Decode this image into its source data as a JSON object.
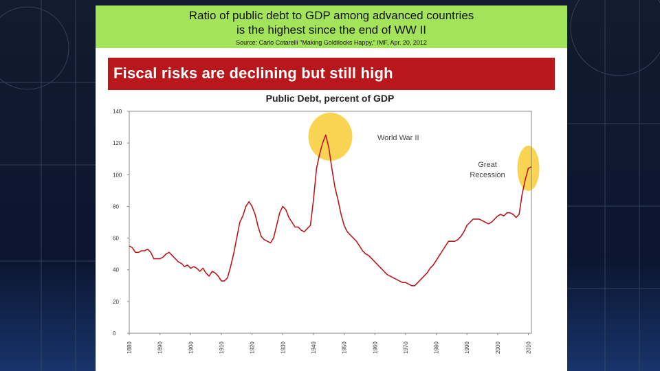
{
  "banner": {
    "line1": "Ratio of public debt to GDP among advanced countries",
    "line2": "is the highest since the end of WW II",
    "source": "Source: Carlo Cotarelli \"Making Goldilocks Happy,\" IMF, Apr. 20, 2012"
  },
  "slide": {
    "headline": "Fiscal risks are declining but still high"
  },
  "colors": {
    "banner_bg": "#a4e45a",
    "headline_bg": "#b8171b",
    "line": "#b8171b",
    "highlight": "#f5c518"
  },
  "chart_data": {
    "type": "line",
    "title": "Public Debt, percent of GDP",
    "xlim": [
      1880,
      2011
    ],
    "ylim": [
      0,
      140
    ],
    "yticks": [
      0,
      20,
      40,
      60,
      80,
      100,
      120,
      140
    ],
    "xticks": [
      1880,
      1890,
      1900,
      1910,
      1920,
      1930,
      1940,
      1950,
      1960,
      1970,
      1980,
      1990,
      2000,
      2010
    ],
    "grid": false,
    "annotations": [
      {
        "text_lines": [
          "World War II"
        ],
        "x": 1945,
        "y": 124
      },
      {
        "text_lines": [
          "Great",
          "Recession"
        ],
        "x": 2010,
        "y": 104
      }
    ],
    "series": [
      {
        "x": [
          1880,
          1881,
          1882,
          1883,
          1884,
          1885,
          1886,
          1887,
          1888,
          1889,
          1890,
          1891,
          1892,
          1893,
          1894,
          1895,
          1896,
          1897,
          1898,
          1899,
          1900,
          1901,
          1902,
          1903,
          1904,
          1905,
          1906,
          1907,
          1908,
          1909,
          1910,
          1911,
          1912,
          1913,
          1914,
          1915,
          1916,
          1917,
          1918,
          1919,
          1920,
          1921,
          1922,
          1923,
          1924,
          1925,
          1926,
          1927,
          1928,
          1929,
          1930,
          1931,
          1932,
          1933,
          1934,
          1935,
          1936,
          1937,
          1938,
          1939,
          1940,
          1941,
          1942,
          1943,
          1944,
          1945,
          1946,
          1947,
          1948,
          1949,
          1950,
          1951,
          1952,
          1953,
          1954,
          1955,
          1956,
          1957,
          1958,
          1959,
          1960,
          1961,
          1962,
          1963,
          1964,
          1965,
          1966,
          1967,
          1968,
          1969,
          1970,
          1971,
          1972,
          1973,
          1974,
          1975,
          1976,
          1977,
          1978,
          1979,
          1980,
          1981,
          1982,
          1983,
          1984,
          1985,
          1986,
          1987,
          1988,
          1989,
          1990,
          1991,
          1992,
          1993,
          1994,
          1995,
          1996,
          1997,
          1998,
          1999,
          2000,
          2001,
          2002,
          2003,
          2004,
          2005,
          2006,
          2007,
          2008,
          2009,
          2010,
          2011
        ],
        "values": [
          55,
          54,
          51,
          51,
          52,
          52,
          53,
          51,
          47,
          47,
          47,
          48,
          50,
          51,
          49,
          47,
          45,
          44,
          42,
          43,
          41,
          42,
          41,
          39,
          41,
          38,
          36,
          39,
          38,
          36,
          33,
          33,
          35,
          42,
          50,
          60,
          70,
          74,
          80,
          83,
          80,
          75,
          67,
          61,
          59,
          58,
          57,
          60,
          68,
          76,
          80,
          78,
          73,
          70,
          67,
          67,
          65,
          64,
          66,
          68,
          84,
          104,
          113,
          120,
          125,
          117,
          104,
          92,
          84,
          75,
          68,
          64,
          62,
          60,
          58,
          55,
          52,
          50,
          49,
          47,
          45,
          43,
          41,
          39,
          37,
          36,
          35,
          34,
          33,
          32,
          32,
          31,
          30,
          30,
          32,
          34,
          36,
          38,
          41,
          43,
          46,
          49,
          52,
          55,
          58,
          58,
          58,
          59,
          61,
          64,
          68,
          70,
          72,
          72,
          72,
          71,
          70,
          69,
          70,
          72,
          74,
          75,
          74,
          76,
          76,
          75,
          73,
          75,
          88,
          97,
          104,
          105
        ]
      }
    ]
  }
}
